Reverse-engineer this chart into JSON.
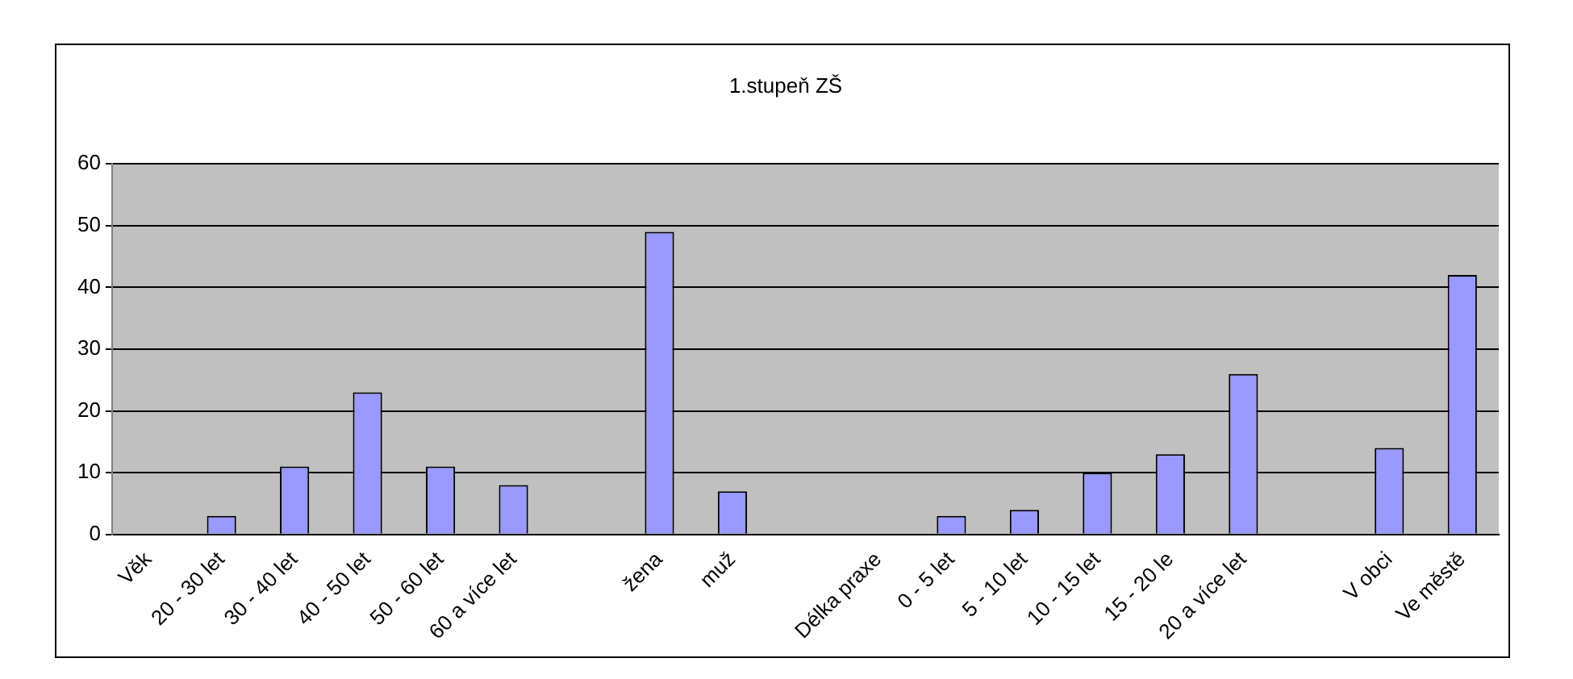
{
  "chart_data": {
    "type": "bar",
    "title": "1.stupeň ZŠ",
    "categories": [
      "Věk",
      "20 - 30 let",
      "30 - 40 let",
      "40 - 50 let",
      "50 - 60 let",
      "60 a více let",
      null,
      "žena",
      "muž",
      null,
      "Délka praxe",
      "0 - 5 let",
      "5 - 10 let",
      "10 - 15 let",
      "15 - 20 le",
      "20 a více let",
      null,
      "V obci",
      "Ve městě"
    ],
    "values": [
      null,
      3,
      11,
      23,
      11,
      8,
      null,
      49,
      7,
      null,
      null,
      3,
      4,
      10,
      13,
      26,
      null,
      14,
      42
    ],
    "color": "#9999ff",
    "ylim": [
      0,
      60
    ],
    "yticks": [
      0,
      10,
      20,
      30,
      40,
      50,
      60
    ],
    "grid": "y",
    "legend": false
  }
}
